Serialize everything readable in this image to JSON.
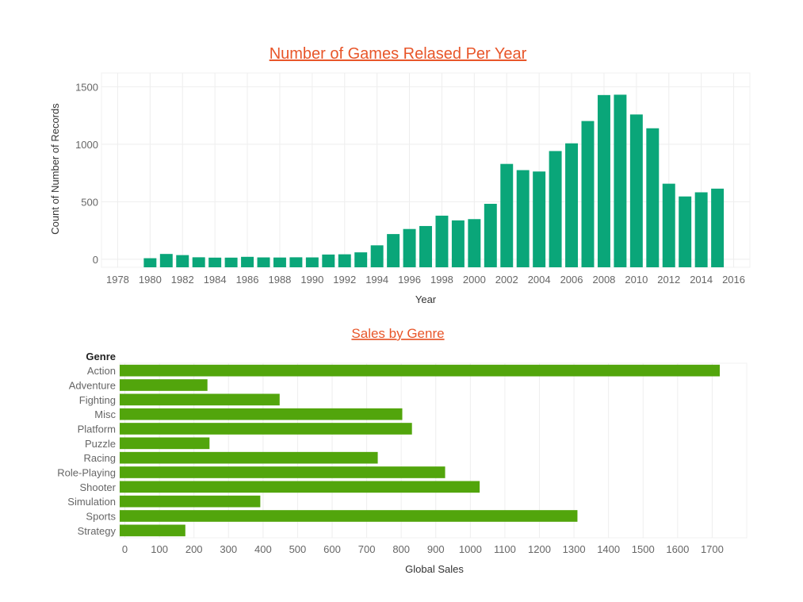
{
  "chart_data": [
    {
      "type": "bar",
      "title": "Number of Games Relased Per Year",
      "xlabel": "Year",
      "ylabel": "Count of Number of Records",
      "xlim": [
        1977,
        2017
      ],
      "ylim": [
        -70,
        1620
      ],
      "x_ticks": [
        1978,
        1980,
        1982,
        1984,
        1986,
        1988,
        1990,
        1992,
        1994,
        1996,
        1998,
        2000,
        2002,
        2004,
        2006,
        2008,
        2010,
        2012,
        2014,
        2016
      ],
      "y_ticks": [
        0,
        500,
        1000,
        1500
      ],
      "x": [
        1980,
        1981,
        1982,
        1983,
        1984,
        1985,
        1986,
        1987,
        1988,
        1989,
        1990,
        1991,
        1992,
        1993,
        1994,
        1995,
        1996,
        1997,
        1998,
        1999,
        2000,
        2001,
        2002,
        2003,
        2004,
        2005,
        2006,
        2007,
        2008,
        2009,
        2010,
        2011,
        2012,
        2013,
        2014,
        2015
      ],
      "values": [
        9,
        46,
        36,
        17,
        14,
        14,
        21,
        16,
        15,
        17,
        16,
        41,
        43,
        60,
        121,
        219,
        263,
        289,
        379,
        338,
        349,
        482,
        829,
        775,
        763,
        941,
        1008,
        1202,
        1428,
        1431,
        1259,
        1139,
        657,
        546,
        582,
        614
      ],
      "color": "#0aa679",
      "grid": true
    },
    {
      "type": "bar",
      "orientation": "horizontal",
      "title": "Sales by Genre",
      "category_header": "Genre",
      "xlabel": "Global Sales",
      "xlim": [
        -15,
        1800
      ],
      "x_ticks": [
        0,
        100,
        200,
        300,
        400,
        500,
        600,
        700,
        800,
        900,
        1000,
        1100,
        1200,
        1300,
        1400,
        1500,
        1600,
        1700
      ],
      "categories": [
        "Action",
        "Adventure",
        "Fighting",
        "Misc",
        "Platform",
        "Puzzle",
        "Racing",
        "Role-Playing",
        "Shooter",
        "Simulation",
        "Sports",
        "Strategy"
      ],
      "values": [
        1722,
        239,
        448,
        803,
        831,
        245,
        732,
        927,
        1027,
        392,
        1310,
        175
      ],
      "color": "#52a50c",
      "grid": true
    }
  ]
}
